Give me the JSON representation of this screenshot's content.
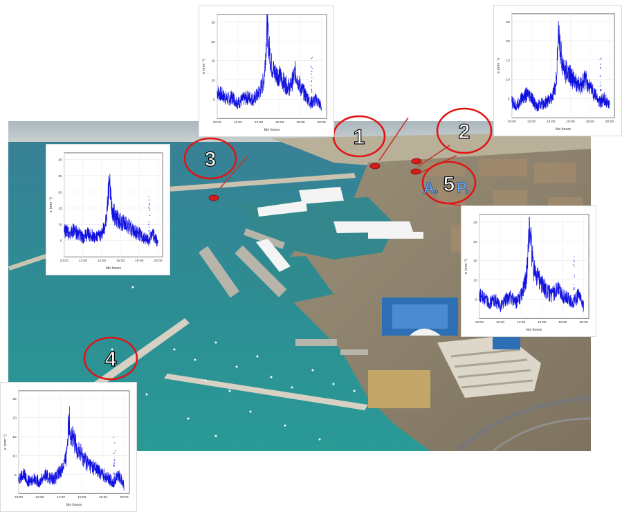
{
  "photo": {
    "subject": "aerial-harbor-photo"
  },
  "markers": [
    {
      "id": "1",
      "label": "1"
    },
    {
      "id": "2",
      "label": "2"
    },
    {
      "id": "3",
      "label": "3"
    },
    {
      "id": "4",
      "label": "4"
    },
    {
      "id": "5",
      "label": "5"
    }
  ],
  "asp_logo": {
    "left": "A.",
    "right": "P."
  },
  "colors": {
    "series": "#1010e0",
    "marker": "#e01010",
    "sea": "#2e8f95",
    "land": "#8a7e6a"
  },
  "chart_common": {
    "ylabel": "e (mm⁻¹)",
    "xlabel": "Idx hours",
    "xticks": [
      "10:00",
      "12:00",
      "14:00",
      "16:00",
      "18:00",
      "20:00"
    ],
    "yticks": [
      "5",
      "10",
      "15",
      "20",
      "25"
    ]
  },
  "chart_data": [
    {
      "type": "line",
      "id": "top-center",
      "yticks": [
        "5",
        "10",
        "15",
        "20",
        "25"
      ],
      "ylim": [
        0,
        27
      ],
      "x": [
        10,
        10.5,
        11,
        11.5,
        12,
        12.5,
        13,
        13.5,
        14,
        14.5,
        14.8,
        15,
        15.2,
        15.5,
        16,
        16.5,
        17,
        17.5,
        18,
        18.5,
        19,
        19.5,
        20
      ],
      "values": [
        7,
        6,
        5,
        5.5,
        4,
        5,
        5.5,
        5,
        6.5,
        10,
        24,
        18,
        14,
        12,
        11,
        9,
        8,
        12,
        8,
        6,
        4,
        5,
        3
      ]
    },
    {
      "type": "line",
      "id": "top-right",
      "yticks": [
        "5",
        "10",
        "15",
        "20",
        "25"
      ],
      "ylim": [
        0,
        27
      ],
      "x": [
        10,
        10.5,
        11,
        11.5,
        12,
        12.5,
        13,
        13.5,
        14,
        14.5,
        14.8,
        15,
        15.2,
        15.5,
        16,
        16.5,
        17,
        17.5,
        18,
        18.5,
        19,
        19.5,
        20
      ],
      "values": [
        4,
        3,
        5,
        6,
        5,
        3,
        3.5,
        4,
        5,
        8,
        22,
        17,
        14,
        12,
        11,
        9,
        8,
        10,
        8,
        6,
        4,
        5,
        3
      ]
    },
    {
      "type": "line",
      "id": "left",
      "yticks": [
        "5",
        "10",
        "15",
        "20",
        "25",
        "30"
      ],
      "ylim": [
        0,
        32
      ],
      "x": [
        10,
        10.5,
        11,
        11.5,
        12,
        12.5,
        13,
        13.5,
        14,
        14.5,
        14.8,
        15,
        15.2,
        15.5,
        16,
        16.5,
        17,
        17.5,
        18,
        18.5,
        19,
        19.5,
        20
      ],
      "values": [
        8,
        7.5,
        8,
        7,
        6,
        7,
        6.5,
        6,
        7,
        11,
        24,
        17,
        14,
        12,
        11,
        10,
        9,
        8,
        7,
        6,
        5,
        7,
        4
      ]
    },
    {
      "type": "line",
      "id": "right",
      "yticks": [
        "5",
        "10",
        "15",
        "20",
        "25"
      ],
      "ylim": [
        0,
        27
      ],
      "x": [
        10,
        10.5,
        11,
        11.5,
        12,
        12.5,
        13,
        13.5,
        14,
        14.5,
        14.8,
        15,
        15.2,
        15.5,
        16,
        16.5,
        17,
        17.5,
        18,
        18.5,
        19,
        19.5,
        20
      ],
      "values": [
        6,
        5,
        4,
        5,
        3,
        5,
        5.5,
        4,
        6,
        10,
        24,
        18,
        13,
        11,
        9,
        7,
        6,
        8,
        6,
        5,
        4,
        6,
        3
      ]
    },
    {
      "type": "line",
      "id": "bottom-left",
      "yticks": [
        "5",
        "10",
        "15",
        "20",
        "25"
      ],
      "ylim": [
        0,
        27
      ],
      "x": [
        10,
        10.5,
        11,
        11.5,
        12,
        12.5,
        13,
        13.5,
        14,
        14.5,
        14.8,
        15,
        15.2,
        15.5,
        16,
        16.5,
        17,
        17.5,
        18,
        18.5,
        19,
        19.5,
        20
      ],
      "values": [
        4,
        5,
        3,
        4,
        3,
        5,
        4,
        4,
        6,
        9,
        20,
        15,
        14,
        12,
        10,
        8,
        7,
        6,
        5,
        4,
        3,
        5,
        2
      ]
    }
  ]
}
